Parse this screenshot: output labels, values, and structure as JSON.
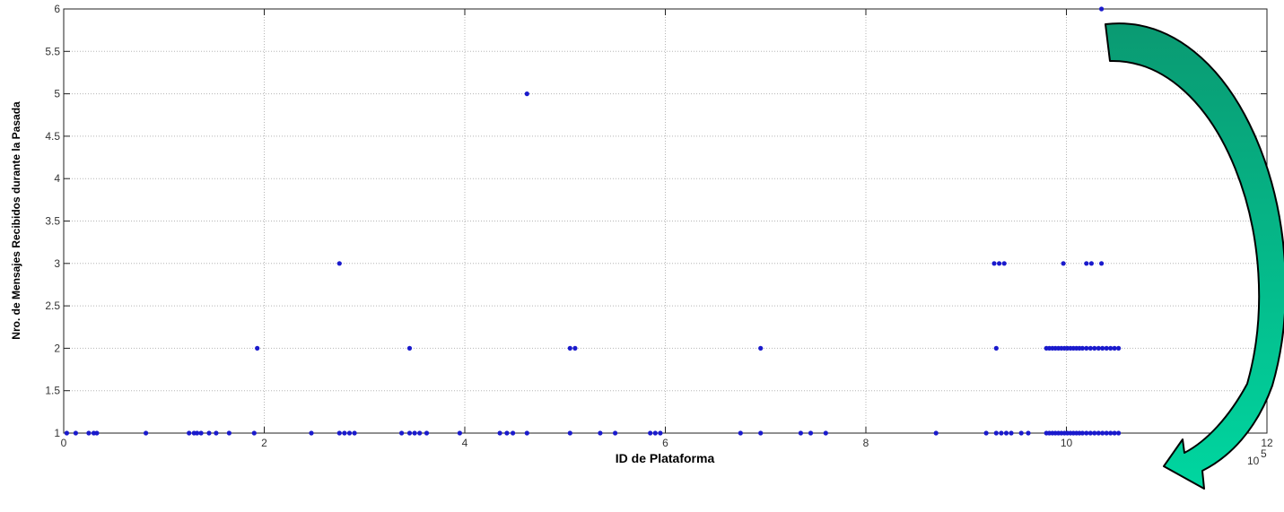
{
  "chart_data": {
    "type": "scatter",
    "title": "",
    "xlabel": "ID de Plataforma",
    "ylabel": "Nro. de Mensajes Recibidos durante la Pasada",
    "x_exponent_label": "10",
    "x_exponent_sup": "5",
    "xlim": [
      0,
      12
    ],
    "ylim": [
      1,
      6
    ],
    "x_ticks": [
      0,
      2,
      4,
      6,
      8,
      10,
      12
    ],
    "y_ticks": [
      1,
      1.5,
      2,
      2.5,
      3,
      3.5,
      4,
      4.5,
      5,
      5.5,
      6
    ],
    "x_tick_labels": [
      "0",
      "2",
      "4",
      "6",
      "8",
      "10",
      "12"
    ],
    "y_tick_labels": [
      "1",
      "1.5",
      "2",
      "2.5",
      "3",
      "3.5",
      "4",
      "4.5",
      "5",
      "5.5",
      "6"
    ],
    "grid": true,
    "marker_color": "#1a1acc",
    "arrow_color": "#00c896",
    "points": [
      [
        0.03,
        1
      ],
      [
        0.12,
        1
      ],
      [
        0.25,
        1
      ],
      [
        0.3,
        1
      ],
      [
        0.33,
        1
      ],
      [
        0.82,
        1
      ],
      [
        1.25,
        1
      ],
      [
        1.3,
        1
      ],
      [
        1.33,
        1
      ],
      [
        1.37,
        1
      ],
      [
        1.45,
        1
      ],
      [
        1.52,
        1
      ],
      [
        1.65,
        1
      ],
      [
        1.9,
        1
      ],
      [
        2.47,
        1
      ],
      [
        2.75,
        1
      ],
      [
        2.8,
        1
      ],
      [
        2.85,
        1
      ],
      [
        2.9,
        1
      ],
      [
        3.37,
        1
      ],
      [
        3.45,
        1
      ],
      [
        3.5,
        1
      ],
      [
        3.55,
        1
      ],
      [
        3.62,
        1
      ],
      [
        3.95,
        1
      ],
      [
        4.35,
        1
      ],
      [
        4.42,
        1
      ],
      [
        4.48,
        1
      ],
      [
        4.62,
        1
      ],
      [
        5.05,
        1
      ],
      [
        5.35,
        1
      ],
      [
        5.5,
        1
      ],
      [
        5.85,
        1
      ],
      [
        5.9,
        1
      ],
      [
        5.95,
        1
      ],
      [
        6.75,
        1
      ],
      [
        6.95,
        1
      ],
      [
        7.35,
        1
      ],
      [
        7.45,
        1
      ],
      [
        7.6,
        1
      ],
      [
        8.7,
        1
      ],
      [
        9.2,
        1
      ],
      [
        9.3,
        1
      ],
      [
        9.35,
        1
      ],
      [
        9.4,
        1
      ],
      [
        9.45,
        1
      ],
      [
        9.55,
        1
      ],
      [
        9.62,
        1
      ],
      [
        9.8,
        1
      ],
      [
        9.83,
        1
      ],
      [
        9.86,
        1
      ],
      [
        9.89,
        1
      ],
      [
        9.92,
        1
      ],
      [
        9.95,
        1
      ],
      [
        9.98,
        1
      ],
      [
        10.01,
        1
      ],
      [
        10.04,
        1
      ],
      [
        10.07,
        1
      ],
      [
        10.1,
        1
      ],
      [
        10.13,
        1
      ],
      [
        10.16,
        1
      ],
      [
        10.2,
        1
      ],
      [
        10.24,
        1
      ],
      [
        10.28,
        1
      ],
      [
        10.32,
        1
      ],
      [
        10.36,
        1
      ],
      [
        10.4,
        1
      ],
      [
        10.44,
        1
      ],
      [
        10.48,
        1
      ],
      [
        10.52,
        1
      ],
      [
        1.93,
        2
      ],
      [
        3.45,
        2
      ],
      [
        5.05,
        2
      ],
      [
        5.1,
        2
      ],
      [
        6.95,
        2
      ],
      [
        9.3,
        2
      ],
      [
        9.8,
        2
      ],
      [
        9.83,
        2
      ],
      [
        9.86,
        2
      ],
      [
        9.89,
        2
      ],
      [
        9.92,
        2
      ],
      [
        9.95,
        2
      ],
      [
        9.98,
        2
      ],
      [
        10.01,
        2
      ],
      [
        10.04,
        2
      ],
      [
        10.07,
        2
      ],
      [
        10.1,
        2
      ],
      [
        10.13,
        2
      ],
      [
        10.16,
        2
      ],
      [
        10.2,
        2
      ],
      [
        10.24,
        2
      ],
      [
        10.28,
        2
      ],
      [
        10.32,
        2
      ],
      [
        10.36,
        2
      ],
      [
        10.4,
        2
      ],
      [
        10.44,
        2
      ],
      [
        10.48,
        2
      ],
      [
        10.52,
        2
      ],
      [
        2.75,
        3
      ],
      [
        9.28,
        3
      ],
      [
        9.33,
        3
      ],
      [
        9.38,
        3
      ],
      [
        9.97,
        3
      ],
      [
        10.2,
        3
      ],
      [
        10.25,
        3
      ],
      [
        10.35,
        3
      ],
      [
        4.62,
        5
      ],
      [
        10.35,
        6
      ]
    ]
  }
}
